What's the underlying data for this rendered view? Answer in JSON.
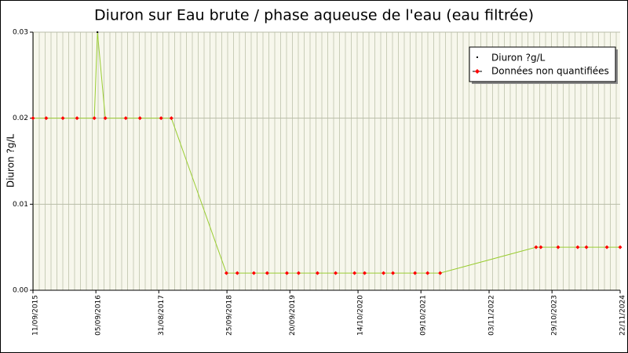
{
  "chart_data": {
    "type": "line",
    "title": "Diuron sur Eau brute / phase aqueuse de l'eau (eau filtrée)",
    "y_label": "Diuron ?g/L",
    "x": [
      "2015-09-11",
      "2015-11-26",
      "2016-02-29",
      "2016-05-20",
      "2016-08-27",
      "2016-09-14",
      "2016-10-29",
      "2017-02-23",
      "2017-05-15",
      "2017-09-13",
      "2017-11-11",
      "2018-09-22",
      "2018-11-23",
      "2019-02-26",
      "2019-05-13",
      "2019-09-03",
      "2019-11-09",
      "2020-02-25",
      "2020-06-08",
      "2020-09-24",
      "2020-11-21",
      "2021-03-09",
      "2021-05-02",
      "2021-09-05",
      "2021-11-16",
      "2022-01-27",
      "2023-07-30",
      "2023-08-26",
      "2023-12-03",
      "2024-03-24",
      "2024-05-13",
      "2024-09-07",
      "2024-11-22"
    ],
    "series": [
      {
        "name": "Diuron ?g/L",
        "color": "#000000",
        "line_color": "#9acd32",
        "values": [
          0.02,
          0.02,
          0.02,
          0.02,
          0.02,
          0.03,
          0.02,
          0.02,
          0.02,
          0.02,
          0.02,
          0.002,
          0.002,
          0.002,
          0.002,
          0.002,
          0.002,
          0.002,
          0.002,
          0.002,
          0.002,
          0.002,
          0.002,
          0.002,
          0.002,
          0.002,
          0.005,
          0.005,
          0.005,
          0.005,
          0.005,
          0.005,
          0.005
        ],
        "quantified": [
          false,
          false,
          false,
          false,
          false,
          true,
          false,
          false,
          false,
          false,
          false,
          false,
          false,
          false,
          false,
          false,
          false,
          false,
          false,
          false,
          false,
          false,
          false,
          false,
          false,
          false,
          false,
          false,
          false,
          false,
          false,
          false,
          false
        ]
      }
    ],
    "non_quantified": {
      "name": "Données non quantifiées",
      "color": "#ff0000"
    },
    "xlim": [
      "2015-09-11",
      "2024-11-22"
    ],
    "xticks": [
      {
        "value": "2015-09-11",
        "label": "11/09/2015"
      },
      {
        "value": "2016-09-05",
        "label": "05/09/2016"
      },
      {
        "value": "2017-08-31",
        "label": "31/08/2017"
      },
      {
        "value": "2018-09-25",
        "label": "25/09/2018"
      },
      {
        "value": "2019-09-20",
        "label": "20/09/2019"
      },
      {
        "value": "2020-10-14",
        "label": "14/10/2020"
      },
      {
        "value": "2021-10-09",
        "label": "09/10/2021"
      },
      {
        "value": "2022-11-03",
        "label": "03/11/2022"
      },
      {
        "value": "2023-10-29",
        "label": "29/10/2023"
      },
      {
        "value": "2024-11-22",
        "label": "22/11/2024"
      }
    ],
    "ylim": [
      0,
      0.03
    ],
    "yticks": [
      {
        "value": 0,
        "label": "0.00"
      },
      {
        "value": 0.01,
        "label": "0.01"
      },
      {
        "value": 0.02,
        "label": "0.02"
      },
      {
        "value": 0.03,
        "label": "0.03"
      }
    ],
    "grid": true,
    "legend": "top-right"
  }
}
